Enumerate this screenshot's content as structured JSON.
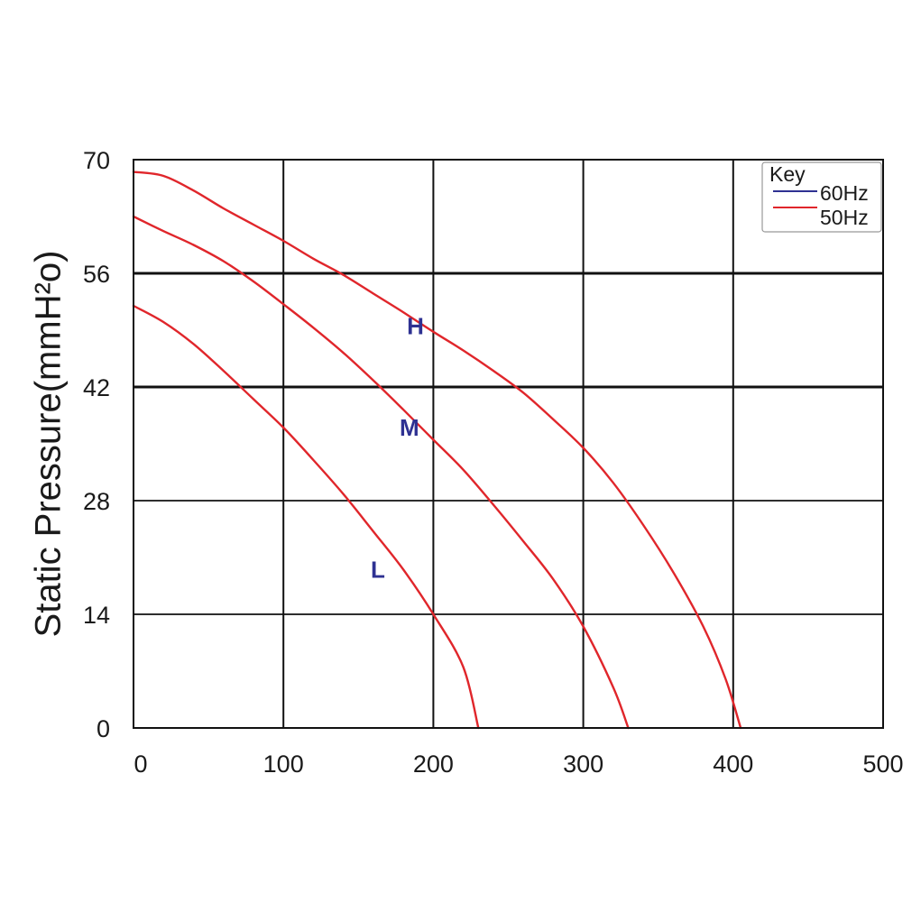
{
  "chart_data": {
    "type": "line",
    "ylabel": "Static Pressure(mmH²o)",
    "xlabel": "",
    "xlim": [
      0,
      500
    ],
    "ylim": [
      0,
      70
    ],
    "x_ticks": [
      "0",
      "100",
      "200",
      "300",
      "400",
      "500"
    ],
    "y_ticks": [
      "0",
      "14",
      "28",
      "42",
      "56",
      "70"
    ],
    "grid": true,
    "colors": {
      "line_60hz": "#2e3192",
      "line_50hz": "#e0262b",
      "label": "#2e3192"
    },
    "legend": {
      "title": "Key",
      "position": "top-right",
      "entries": [
        {
          "label": "60Hz",
          "color": "#2e3192"
        },
        {
          "label": "50Hz",
          "color": "#e0262b"
        }
      ]
    },
    "series": [
      {
        "name": "H",
        "color": "#e0262b",
        "x": [
          0,
          20,
          40,
          60,
          80,
          100,
          120,
          140,
          160,
          180,
          200,
          220,
          240,
          260,
          280,
          300,
          320,
          340,
          360,
          380,
          395,
          405
        ],
        "y": [
          68.5,
          68,
          66.2,
          64,
          62,
          60,
          57.8,
          55.8,
          53.5,
          51.2,
          48.8,
          46.5,
          44,
          41.3,
          38,
          34.5,
          30.2,
          25,
          19.2,
          12.5,
          6,
          0
        ]
      },
      {
        "name": "M",
        "color": "#e0262b",
        "x": [
          0,
          20,
          40,
          60,
          80,
          100,
          120,
          140,
          160,
          180,
          200,
          220,
          240,
          260,
          280,
          300,
          320,
          330
        ],
        "y": [
          63,
          61.2,
          59.5,
          57.5,
          55,
          52.2,
          49.3,
          46.2,
          42.8,
          39.2,
          35.5,
          31.8,
          27.5,
          23,
          18.3,
          12.5,
          5,
          0
        ]
      },
      {
        "name": "L",
        "color": "#e0262b",
        "x": [
          0,
          20,
          40,
          60,
          80,
          100,
          120,
          140,
          160,
          180,
          200,
          220,
          230
        ],
        "y": [
          52,
          50,
          47.3,
          44,
          40.5,
          37,
          33,
          28.8,
          24.2,
          19.5,
          14,
          7.5,
          0
        ]
      }
    ],
    "curve_labels": [
      {
        "text": "H",
        "x": 188,
        "y": 48.5
      },
      {
        "text": "M",
        "x": 184,
        "y": 36
      },
      {
        "text": "L",
        "x": 163,
        "y": 18.5
      }
    ]
  }
}
